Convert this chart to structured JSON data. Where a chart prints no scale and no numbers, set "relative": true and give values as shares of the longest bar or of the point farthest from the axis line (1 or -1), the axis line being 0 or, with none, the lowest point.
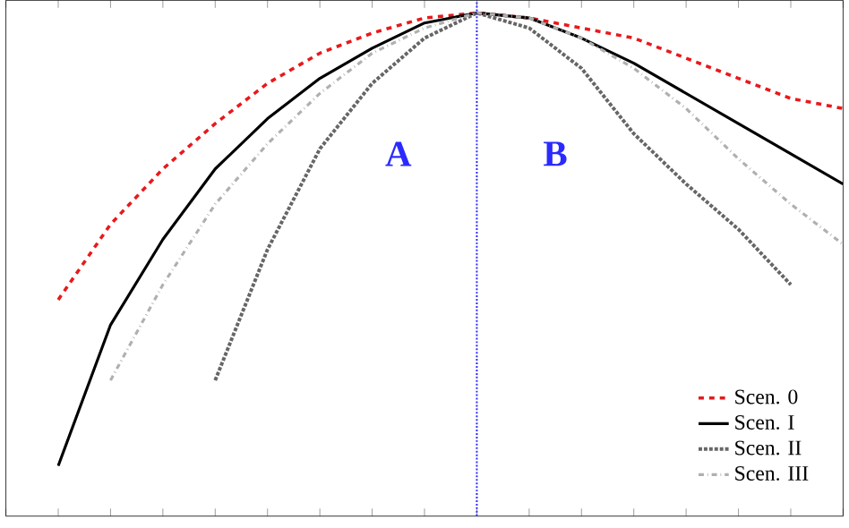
{
  "chart_data": {
    "type": "line",
    "relative": true,
    "categories": [
      null,
      null,
      null,
      null,
      null,
      null,
      null,
      null,
      null,
      null,
      null,
      null,
      null,
      null,
      null,
      null,
      null
    ],
    "series": [
      {
        "name": "Scen. 0",
        "color": "#e8191c",
        "line_style": "dashed",
        "values": [
          null,
          0.43,
          0.58,
          0.69,
          0.78,
          0.86,
          0.92,
          0.96,
          0.99,
          1.0,
          0.99,
          0.97,
          0.95,
          0.91,
          0.87,
          0.83,
          0.81
        ]
      },
      {
        "name": "Scen. I",
        "color": "#000000",
        "line_style": "solid",
        "values": [
          null,
          0.1,
          0.38,
          0.55,
          0.69,
          0.79,
          0.87,
          0.93,
          0.98,
          1.0,
          0.99,
          0.95,
          0.9,
          0.84,
          0.78,
          0.72,
          0.66
        ]
      },
      {
        "name": "Scen. II",
        "color": "#666666",
        "line_style": "dotted",
        "values": [
          null,
          null,
          null,
          null,
          0.27,
          0.53,
          0.73,
          0.86,
          0.95,
          1.0,
          0.97,
          0.89,
          0.76,
          0.66,
          0.57,
          0.46,
          null
        ]
      },
      {
        "name": "Scen. III",
        "color": "#b0b0b0",
        "line_style": "dashdot",
        "values": [
          null,
          null,
          0.27,
          0.46,
          0.62,
          0.74,
          0.84,
          0.92,
          0.97,
          1.0,
          0.99,
          0.95,
          0.89,
          0.81,
          0.71,
          0.62,
          0.54
        ]
      }
    ],
    "annotations": [
      "A",
      "B"
    ],
    "legend": "bottom right",
    "tick_labels": false,
    "grid": false
  }
}
